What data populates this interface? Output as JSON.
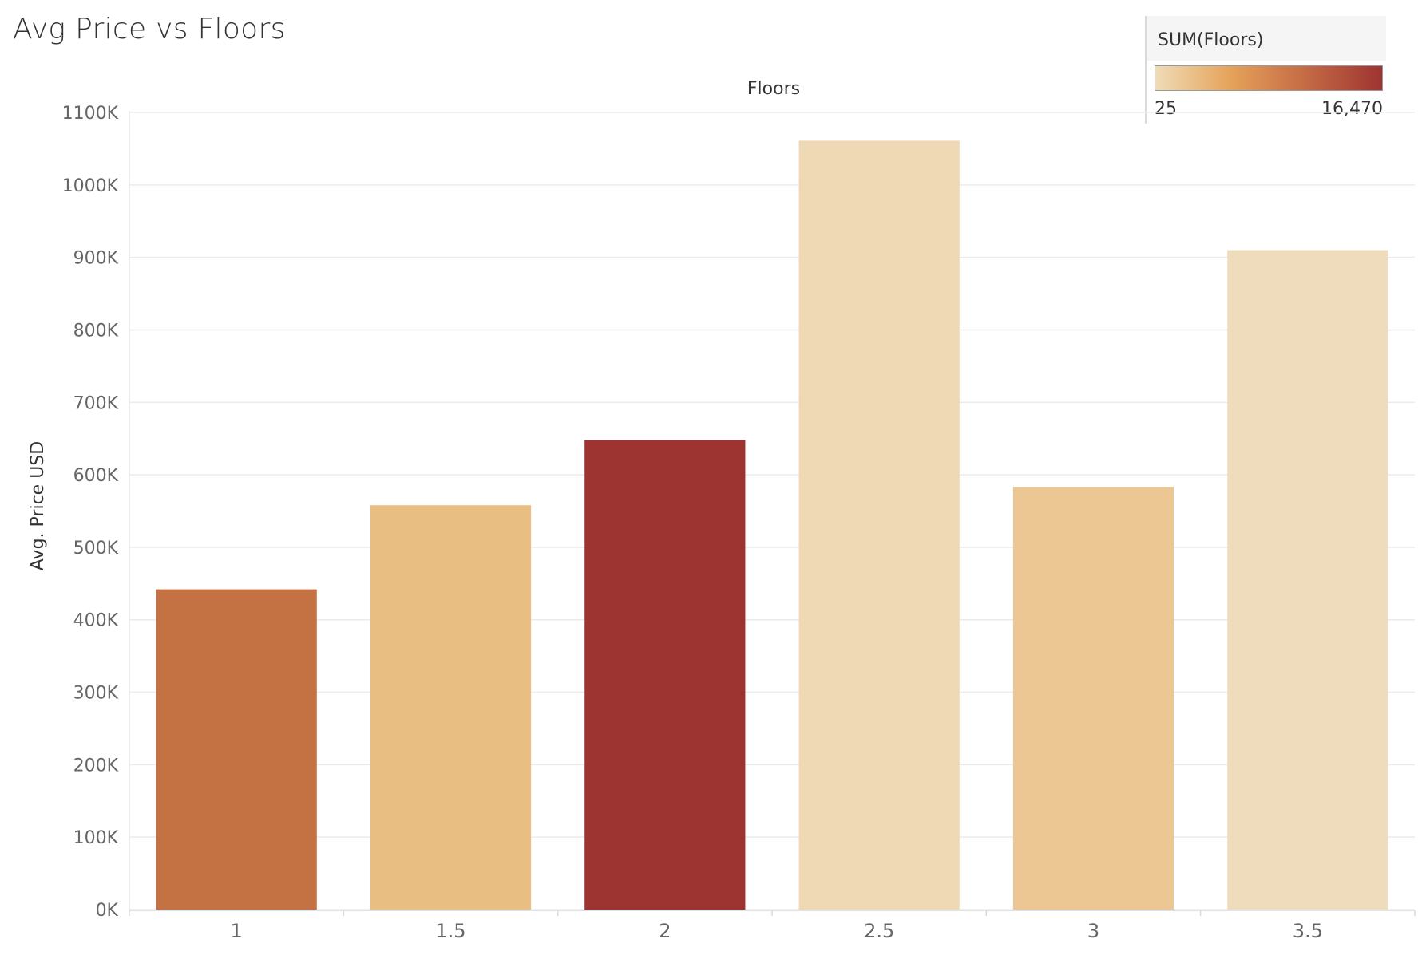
{
  "chart_data": {
    "type": "bar",
    "title": "Avg Price vs Floors",
    "xlabel": "Floors",
    "ylabel": "Avg. Price USD",
    "categories": [
      "1",
      "1.5",
      "2",
      "2.5",
      "3",
      "3.5"
    ],
    "values": [
      442000,
      558000,
      648000,
      1061000,
      583000,
      910000
    ],
    "color_values": [
      10680,
      2780,
      16470,
      41,
      1743,
      25
    ],
    "ylim": [
      0,
      1100000
    ],
    "yticks": [
      0,
      100000,
      200000,
      300000,
      400000,
      500000,
      600000,
      700000,
      800000,
      900000,
      1000000,
      1100000
    ],
    "ytick_labels": [
      "0K",
      "100K",
      "200K",
      "300K",
      "400K",
      "500K",
      "600K",
      "700K",
      "800K",
      "900K",
      "1000K",
      "1100K"
    ],
    "bar_colors": [
      "#c47244",
      "#e9be83",
      "#9e3431",
      "#efd9b4",
      "#ecc794",
      "#eedcbd"
    ],
    "grid": true,
    "legend": {
      "title": "SUM(Floors)",
      "min_label": "25",
      "max_label": "16,470",
      "gradient": [
        "#efdcb7",
        "#e5a25a",
        "#c46a45",
        "#9e3431"
      ],
      "placement": "top-right"
    }
  }
}
